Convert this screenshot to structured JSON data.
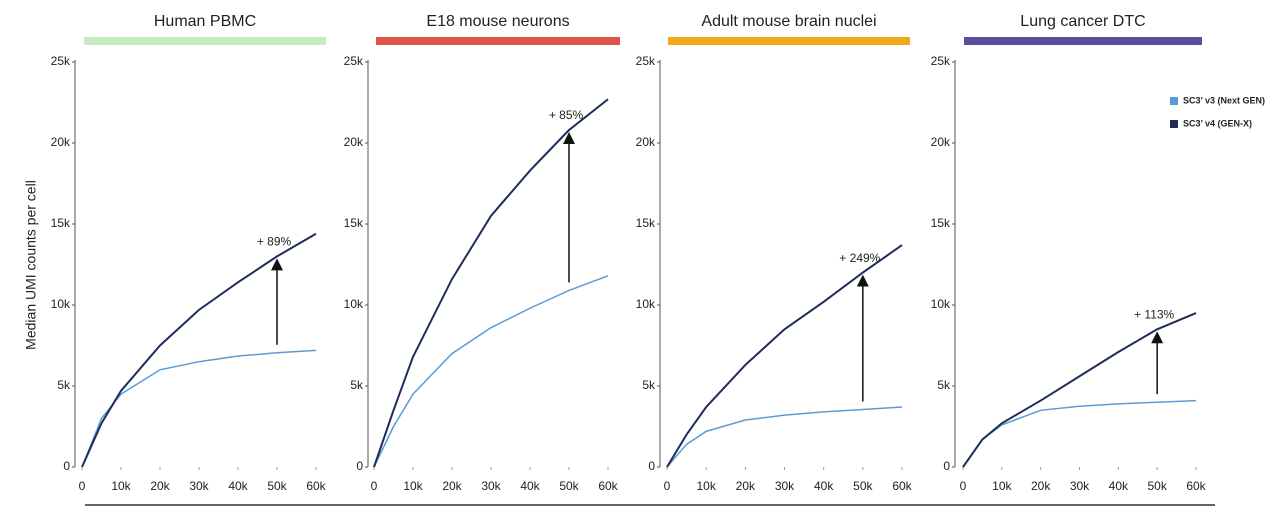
{
  "chart_data": [
    {
      "type": "line",
      "title": "Human PBMC",
      "header_color": "#c8ebc4",
      "ylabel": "Median UMI counts per cell",
      "x": [
        0,
        5000,
        10000,
        20000,
        30000,
        40000,
        50000,
        60000
      ],
      "series": [
        {
          "color": "#5b9bd5",
          "values": [
            0,
            3000,
            4500,
            6000,
            6500,
            6850,
            7050,
            7200
          ]
        },
        {
          "color": "#1f2d5a",
          "values": [
            0,
            2700,
            4700,
            7500,
            9700,
            11400,
            13000,
            14400
          ]
        }
      ],
      "annotation": "+ 89%",
      "xlim": [
        0,
        60000
      ],
      "ylim": [
        0,
        25000
      ],
      "xticks": [
        0,
        {
          "value": 10000,
          "label": "10k"
        },
        {
          "value": 20000,
          "label": "20k"
        },
        {
          "value": 30000,
          "label": "30k"
        },
        {
          "value": 40000,
          "label": "40k"
        },
        {
          "value": 50000,
          "label": "50k"
        },
        {
          "value": 60000,
          "label": "60k"
        }
      ],
      "yticks": [
        0,
        {
          "value": 5000,
          "label": "5k"
        },
        {
          "value": 10000,
          "label": "10k"
        },
        {
          "value": 15000,
          "label": "15k"
        },
        {
          "value": 20000,
          "label": "20k"
        },
        {
          "value": 25000,
          "label": "25k"
        }
      ]
    },
    {
      "type": "line",
      "title": "E18 mouse neurons",
      "header_color": "#e0554a",
      "x": [
        0,
        5000,
        10000,
        20000,
        30000,
        40000,
        50000,
        60000
      ],
      "series": [
        {
          "color": "#5b9bd5",
          "values": [
            0,
            2500,
            4500,
            7000,
            8600,
            9800,
            10900,
            11800
          ]
        },
        {
          "color": "#1f2d5a",
          "values": [
            0,
            3500,
            6800,
            11600,
            15500,
            18300,
            20800,
            22700
          ]
        }
      ],
      "annotation": "+ 85%",
      "xlim": [
        0,
        60000
      ],
      "ylim": [
        0,
        25000
      ],
      "xticks": [
        0,
        {
          "value": 10000,
          "label": "10k"
        },
        {
          "value": 20000,
          "label": "20k"
        },
        {
          "value": 30000,
          "label": "30k"
        },
        {
          "value": 40000,
          "label": "40k"
        },
        {
          "value": 50000,
          "label": "50k"
        },
        {
          "value": 60000,
          "label": "60k"
        }
      ],
      "yticks": [
        0,
        {
          "value": 5000,
          "label": "5k"
        },
        {
          "value": 10000,
          "label": "10k"
        },
        {
          "value": 15000,
          "label": "15k"
        },
        {
          "value": 20000,
          "label": "20k"
        },
        {
          "value": 25000,
          "label": "25k"
        }
      ]
    },
    {
      "type": "line",
      "title": "Adult mouse brain nuclei",
      "header_color": "#f0a81c",
      "x": [
        0,
        5000,
        10000,
        20000,
        30000,
        40000,
        50000,
        60000
      ],
      "series": [
        {
          "color": "#5b9bd5",
          "values": [
            0,
            1400,
            2200,
            2900,
            3200,
            3400,
            3550,
            3700
          ]
        },
        {
          "color": "#1f2d5a",
          "values": [
            0,
            2000,
            3700,
            6300,
            8500,
            10200,
            12000,
            13700
          ]
        }
      ],
      "annotation": "+ 249%",
      "xlim": [
        0,
        60000
      ],
      "ylim": [
        0,
        25000
      ],
      "xticks": [
        0,
        {
          "value": 10000,
          "label": "10k"
        },
        {
          "value": 20000,
          "label": "20k"
        },
        {
          "value": 30000,
          "label": "30k"
        },
        {
          "value": 40000,
          "label": "40k"
        },
        {
          "value": 50000,
          "label": "50k"
        },
        {
          "value": 60000,
          "label": "60k"
        }
      ],
      "yticks": [
        0,
        {
          "value": 5000,
          "label": "5k"
        },
        {
          "value": 10000,
          "label": "10k"
        },
        {
          "value": 15000,
          "label": "15k"
        },
        {
          "value": 20000,
          "label": "20k"
        },
        {
          "value": 25000,
          "label": "25k"
        }
      ]
    },
    {
      "type": "line",
      "title": "Lung cancer DTC",
      "header_color": "#5b4ea0",
      "x": [
        0,
        5000,
        10000,
        20000,
        30000,
        40000,
        50000,
        60000
      ],
      "series": [
        {
          "name": "SC3’ v3 (Next GEN)",
          "color": "#5b9bd5",
          "values": [
            0,
            1700,
            2600,
            3500,
            3750,
            3900,
            4000,
            4100
          ]
        },
        {
          "name": "SC3’ v4 (GEN-X)",
          "color": "#1f2d5a",
          "values": [
            0,
            1700,
            2700,
            4100,
            5600,
            7100,
            8500,
            9500
          ]
        }
      ],
      "annotation": "+ 113%",
      "xlim": [
        0,
        60000
      ],
      "ylim": [
        0,
        25000
      ],
      "xticks": [
        0,
        {
          "value": 10000,
          "label": "10k"
        },
        {
          "value": 20000,
          "label": "20k"
        },
        {
          "value": 30000,
          "label": "30k"
        },
        {
          "value": 40000,
          "label": "40k"
        },
        {
          "value": 50000,
          "label": "50k"
        },
        {
          "value": 60000,
          "label": "60k"
        }
      ],
      "yticks": [
        0,
        {
          "value": 5000,
          "label": "5k"
        },
        {
          "value": 10000,
          "label": "10k"
        },
        {
          "value": 15000,
          "label": "15k"
        },
        {
          "value": 20000,
          "label": "20k"
        },
        {
          "value": 25000,
          "label": "25k"
        }
      ]
    }
  ]
}
